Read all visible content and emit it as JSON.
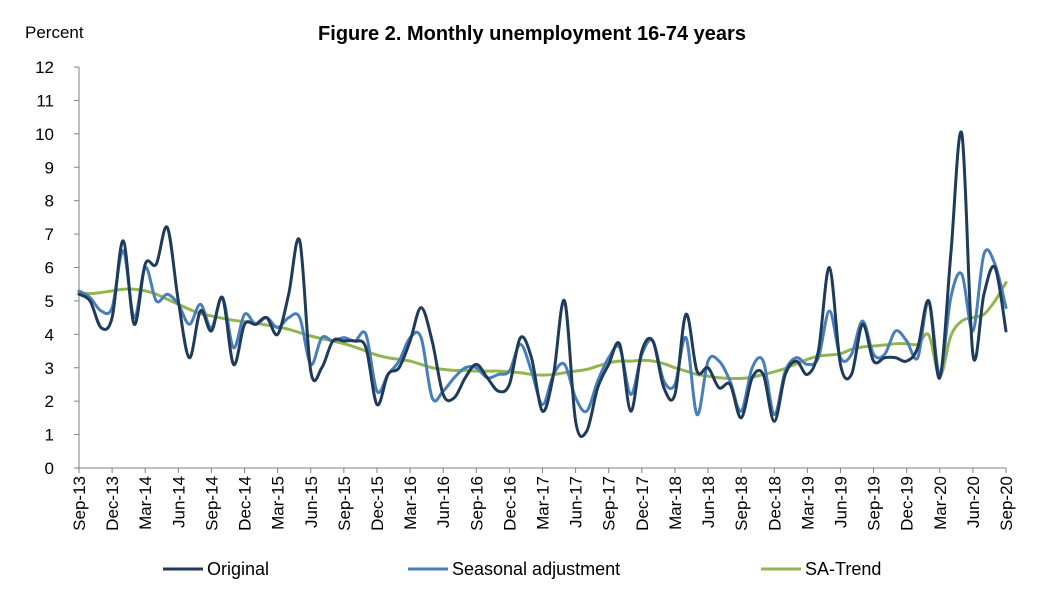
{
  "chart_data": {
    "type": "line",
    "title": "Figure 2. Monthly unemployment 16-74 years",
    "ylabel": "Percent",
    "xlabel": "",
    "ylim": [
      0,
      12
    ],
    "yticks": [
      0,
      1,
      2,
      3,
      4,
      5,
      6,
      7,
      8,
      9,
      10,
      11,
      12
    ],
    "grid": false,
    "legend_position": "bottom",
    "x_tick_labels": [
      "Sep-13",
      "Dec-13",
      "Mar-14",
      "Jun-14",
      "Sep-14",
      "Dec-14",
      "Mar-15",
      "Jun-15",
      "Sep-15",
      "Dec-15",
      "Mar-16",
      "Jun-16",
      "Sep-16",
      "Dec-16",
      "Mar-17",
      "Jun-17",
      "Sep-17",
      "Dec-17",
      "Mar-18",
      "Jun-18",
      "Sep-18",
      "Dec-18",
      "Mar-19",
      "Jun-19",
      "Sep-19",
      "Dec-19",
      "Mar-20",
      "Jun-20",
      "Sep-20"
    ],
    "x": [
      "2013-09",
      "2013-10",
      "2013-11",
      "2013-12",
      "2014-01",
      "2014-02",
      "2014-03",
      "2014-04",
      "2014-05",
      "2014-06",
      "2014-07",
      "2014-08",
      "2014-09",
      "2014-10",
      "2014-11",
      "2014-12",
      "2015-01",
      "2015-02",
      "2015-03",
      "2015-04",
      "2015-05",
      "2015-06",
      "2015-07",
      "2015-08",
      "2015-09",
      "2015-10",
      "2015-11",
      "2015-12",
      "2016-01",
      "2016-02",
      "2016-03",
      "2016-04",
      "2016-05",
      "2016-06",
      "2016-07",
      "2016-08",
      "2016-09",
      "2016-10",
      "2016-11",
      "2016-12",
      "2017-01",
      "2017-02",
      "2017-03",
      "2017-04",
      "2017-05",
      "2017-06",
      "2017-07",
      "2017-08",
      "2017-09",
      "2017-10",
      "2017-11",
      "2017-12",
      "2018-01",
      "2018-02",
      "2018-03",
      "2018-04",
      "2018-05",
      "2018-06",
      "2018-07",
      "2018-08",
      "2018-09",
      "2018-10",
      "2018-11",
      "2018-12",
      "2019-01",
      "2019-02",
      "2019-03",
      "2019-04",
      "2019-05",
      "2019-06",
      "2019-07",
      "2019-08",
      "2019-09",
      "2019-10",
      "2019-11",
      "2019-12",
      "2020-01",
      "2020-02",
      "2020-03",
      "2020-04",
      "2020-05",
      "2020-06",
      "2020-07",
      "2020-08",
      "2020-09"
    ],
    "series": [
      {
        "name": "Original",
        "color": "#1f3b5a",
        "values": [
          5.2,
          5.0,
          4.2,
          4.5,
          6.8,
          4.3,
          6.1,
          6.1,
          7.2,
          5.0,
          3.3,
          4.7,
          4.1,
          5.1,
          3.1,
          4.3,
          4.3,
          4.5,
          4.0,
          5.2,
          6.8,
          2.9,
          3.0,
          3.8,
          3.8,
          3.8,
          3.6,
          1.9,
          2.8,
          3.0,
          3.8,
          4.8,
          3.8,
          2.2,
          2.1,
          2.7,
          3.1,
          2.7,
          2.3,
          2.5,
          3.9,
          3.3,
          1.7,
          2.8,
          5.0,
          1.4,
          1.1,
          2.4,
          3.1,
          3.7,
          1.7,
          3.5,
          3.8,
          2.4,
          2.2,
          4.6,
          2.9,
          3.0,
          2.4,
          2.5,
          1.5,
          2.7,
          2.8,
          1.4,
          2.8,
          3.2,
          2.8,
          3.5,
          6.0,
          3.1,
          2.8,
          4.3,
          3.2,
          3.3,
          3.3,
          3.2,
          3.6,
          5.0,
          2.7,
          6.4,
          10.0,
          3.4,
          5.2,
          6.0,
          4.1
        ]
      },
      {
        "name": "Seasonal adjustment",
        "color": "#4a7ebb",
        "values": [
          5.3,
          5.1,
          4.7,
          4.8,
          6.5,
          4.5,
          6.0,
          5.0,
          5.2,
          4.9,
          4.3,
          4.9,
          4.2,
          5.1,
          3.6,
          4.6,
          4.3,
          4.5,
          4.2,
          4.5,
          4.5,
          3.1,
          3.9,
          3.8,
          3.9,
          3.8,
          4.0,
          2.3,
          2.8,
          3.2,
          3.9,
          3.9,
          2.1,
          2.3,
          2.7,
          3.0,
          3.0,
          2.7,
          2.8,
          2.9,
          3.7,
          2.9,
          1.9,
          2.8,
          3.1,
          2.1,
          1.7,
          2.6,
          3.3,
          3.6,
          2.2,
          3.4,
          3.8,
          2.6,
          2.5,
          3.9,
          1.6,
          3.2,
          3.2,
          2.6,
          1.7,
          3.0,
          3.2,
          1.6,
          2.9,
          3.3,
          3.1,
          3.3,
          4.7,
          3.3,
          3.4,
          4.4,
          3.4,
          3.4,
          4.1,
          3.8,
          3.3,
          5.0,
          2.8,
          5.1,
          5.8,
          4.1,
          6.4,
          6.1,
          4.8
        ]
      },
      {
        "name": "SA-Trend",
        "color": "#92b550",
        "values": [
          5.25,
          5.22,
          5.25,
          5.3,
          5.35,
          5.35,
          5.3,
          5.2,
          5.05,
          4.9,
          4.75,
          4.62,
          4.55,
          4.48,
          4.42,
          4.38,
          4.33,
          4.28,
          4.22,
          4.15,
          4.05,
          3.95,
          3.87,
          3.8,
          3.72,
          3.62,
          3.5,
          3.38,
          3.3,
          3.25,
          3.2,
          3.1,
          3.0,
          2.95,
          2.92,
          2.92,
          2.9,
          2.9,
          2.9,
          2.88,
          2.85,
          2.8,
          2.78,
          2.8,
          2.85,
          2.9,
          2.95,
          3.05,
          3.15,
          3.2,
          3.2,
          3.22,
          3.2,
          3.12,
          3.0,
          2.9,
          2.8,
          2.75,
          2.7,
          2.68,
          2.68,
          2.72,
          2.8,
          2.88,
          2.98,
          3.12,
          3.25,
          3.35,
          3.38,
          3.42,
          3.55,
          3.62,
          3.65,
          3.68,
          3.72,
          3.72,
          3.7,
          3.98,
          2.75,
          3.95,
          4.4,
          4.5,
          4.6,
          5.0,
          5.55
        ]
      }
    ]
  }
}
